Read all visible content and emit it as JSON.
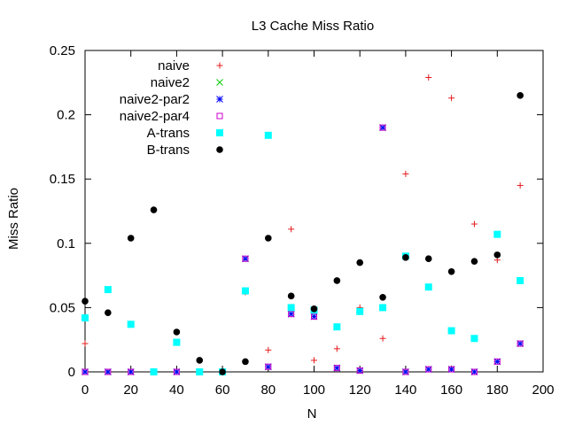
{
  "chart_data": {
    "type": "scatter",
    "title": "L3 Cache Miss Ratio",
    "xlabel": "N",
    "ylabel": "Miss Ratio",
    "xlim": [
      0,
      200
    ],
    "ylim": [
      0,
      0.25
    ],
    "x_ticks": [
      "0",
      "20",
      "40",
      "60",
      "80",
      "100",
      "120",
      "140",
      "160",
      "180",
      "200"
    ],
    "y_ticks": [
      "0",
      "0.05",
      "0.1",
      "0.15",
      "0.2",
      "0.25"
    ],
    "grid": false,
    "legend_position": "top-left",
    "x": [
      0,
      10,
      20,
      30,
      40,
      50,
      60,
      70,
      80,
      90,
      100,
      110,
      120,
      130,
      140,
      150,
      160,
      170,
      180,
      190
    ],
    "series": [
      {
        "name": "naive",
        "marker": "plus",
        "color": "#e41a1c",
        "values": [
          0.022,
          0,
          0,
          0,
          0.031,
          0,
          0,
          0.062,
          0.017,
          0.111,
          0.009,
          0.018,
          0.05,
          0.026,
          0.154,
          0.229,
          0.213,
          0.115,
          0.087,
          0.145
        ]
      },
      {
        "name": "naive2",
        "marker": "cross",
        "color": "#00cc00",
        "values": [
          0,
          0,
          0,
          0,
          0,
          0,
          0,
          0.088,
          0.004,
          0.045,
          0.043,
          0.003,
          0.001,
          0.19,
          0,
          0.002,
          0.002,
          0,
          0.008,
          0.022
        ]
      },
      {
        "name": "naive2-par2",
        "marker": "star",
        "color": "#0000ff",
        "values": [
          0,
          0,
          0,
          0,
          0,
          0,
          0,
          0.088,
          0.004,
          0.045,
          0.043,
          0.003,
          0.001,
          0.19,
          0,
          0.002,
          0.002,
          0,
          0.008,
          0.022
        ]
      },
      {
        "name": "naive2-par4",
        "marker": "open-square",
        "color": "#cc00cc",
        "values": [
          0,
          0,
          0,
          0,
          0,
          0,
          0,
          0.088,
          0.004,
          0.045,
          0.043,
          0.003,
          0.001,
          0.19,
          0,
          0.002,
          0.002,
          0,
          0.008,
          0.022
        ]
      },
      {
        "name": "A-trans",
        "marker": "filled-square",
        "color": "#00ffff",
        "values": [
          0.042,
          0.064,
          0.037,
          0,
          0.023,
          0,
          0,
          0.063,
          0.184,
          0.05,
          0.048,
          0.035,
          0.047,
          0.05,
          0.09,
          0.066,
          0.032,
          0.026,
          0.107,
          0.071
        ]
      },
      {
        "name": "B-trans",
        "marker": "filled-circle",
        "color": "#000000",
        "values": [
          0.055,
          0.046,
          0.104,
          0.126,
          0.031,
          0.009,
          0,
          0.008,
          0.104,
          0.059,
          0.049,
          0.071,
          0.085,
          0.058,
          0.089,
          0.088,
          0.078,
          0.086,
          0.091,
          0.215
        ]
      }
    ]
  }
}
